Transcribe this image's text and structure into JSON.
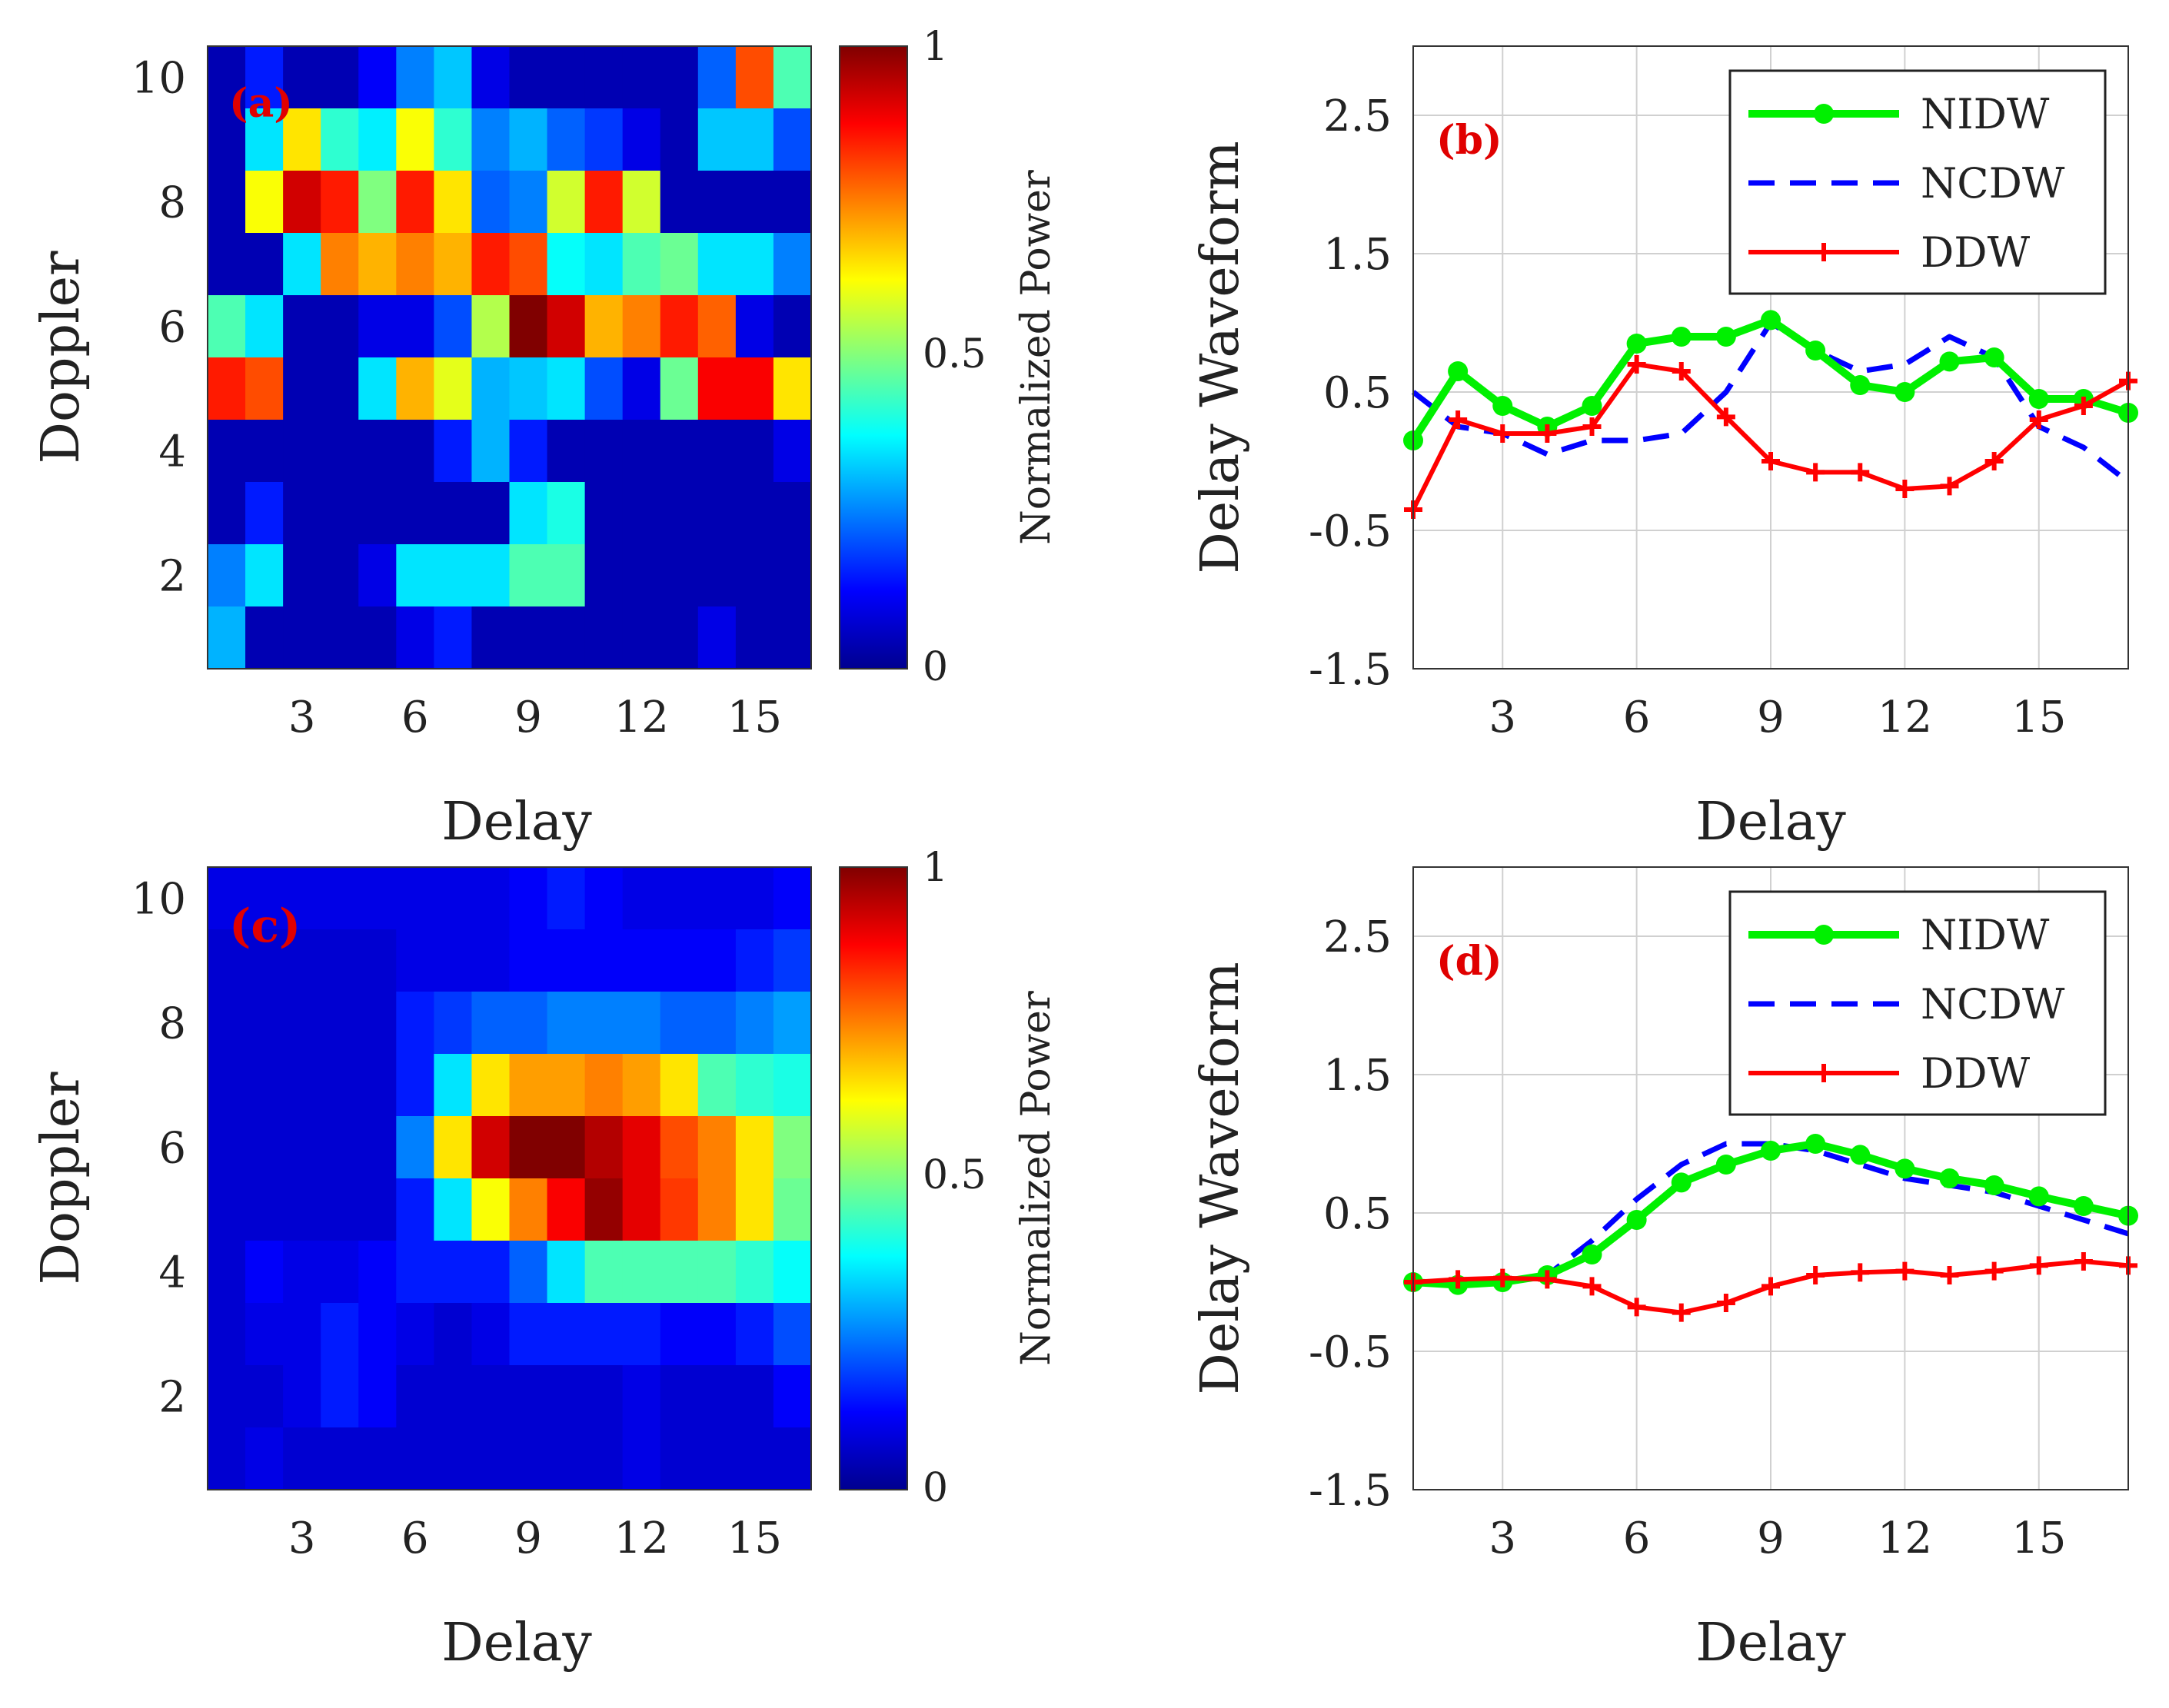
{
  "chart_data": [
    {
      "type": "heatmap",
      "panel_label": "(a)",
      "xlabel": "Delay",
      "ylabel": "Doppler",
      "xticks": [
        "3",
        "6",
        "9",
        "12",
        "15"
      ],
      "yticks": [
        "2",
        "4",
        "6",
        "8",
        "10"
      ],
      "xlim": [
        0.5,
        16.5
      ],
      "ylim": [
        0.5,
        10.5
      ],
      "colorbar": {
        "label": "Normalized Power",
        "ticks": [
          "0",
          "0.5",
          "1"
        ],
        "range": [
          0,
          1
        ]
      },
      "z_rows_top_to_bottom": [
        [
          0.05,
          0.15,
          0.05,
          0.05,
          0.12,
          0.25,
          0.32,
          0.1,
          0.05,
          0.05,
          0.05,
          0.05,
          0.05,
          0.22,
          0.8,
          0.45
        ],
        [
          0.05,
          0.35,
          0.65,
          0.42,
          0.36,
          0.62,
          0.42,
          0.25,
          0.3,
          0.22,
          0.18,
          0.1,
          0.05,
          0.32,
          0.32,
          0.2
        ],
        [
          0.05,
          0.62,
          0.92,
          0.85,
          0.5,
          0.85,
          0.65,
          0.22,
          0.25,
          0.58,
          0.85,
          0.58,
          0.05,
          0.05,
          0.05,
          0.05
        ],
        [
          0.05,
          0.05,
          0.35,
          0.75,
          0.7,
          0.75,
          0.7,
          0.85,
          0.8,
          0.38,
          0.35,
          0.45,
          0.48,
          0.35,
          0.35,
          0.25
        ],
        [
          0.45,
          0.35,
          0.05,
          0.05,
          0.1,
          0.1,
          0.2,
          0.55,
          1.0,
          0.92,
          0.7,
          0.75,
          0.85,
          0.78,
          0.1,
          0.05
        ],
        [
          0.85,
          0.8,
          0.05,
          0.05,
          0.35,
          0.7,
          0.6,
          0.3,
          0.32,
          0.35,
          0.2,
          0.1,
          0.48,
          0.88,
          0.88,
          0.65
        ],
        [
          0.05,
          0.05,
          0.05,
          0.05,
          0.05,
          0.05,
          0.15,
          0.3,
          0.15,
          0.05,
          0.05,
          0.05,
          0.05,
          0.05,
          0.05,
          0.1
        ],
        [
          0.05,
          0.15,
          0.05,
          0.05,
          0.05,
          0.05,
          0.05,
          0.05,
          0.35,
          0.4,
          0.05,
          0.05,
          0.05,
          0.05,
          0.05,
          0.05
        ],
        [
          0.25,
          0.35,
          0.05,
          0.05,
          0.1,
          0.35,
          0.35,
          0.35,
          0.45,
          0.45,
          0.05,
          0.05,
          0.05,
          0.05,
          0.05,
          0.05
        ],
        [
          0.3,
          0.05,
          0.05,
          0.05,
          0.05,
          0.1,
          0.15,
          0.05,
          0.05,
          0.05,
          0.05,
          0.05,
          0.05,
          0.1,
          0.05,
          0.05
        ]
      ]
    },
    {
      "type": "line",
      "panel_label": "(b)",
      "xlabel": "Delay",
      "ylabel": "Delay Waveform",
      "xticks": [
        "3",
        "6",
        "9",
        "12",
        "15"
      ],
      "yticks": [
        "2.5",
        "1.5",
        "0.5",
        "-0.5",
        "-1.5"
      ],
      "xlim": [
        1,
        17
      ],
      "ylim": [
        -1.5,
        3.0
      ],
      "grid": true,
      "legend_position": "top-right",
      "x": [
        1,
        2,
        3,
        4,
        5,
        6,
        7,
        8,
        9,
        10,
        11,
        12,
        13,
        14,
        15,
        16,
        17
      ],
      "series": [
        {
          "name": "NIDW",
          "color": "#00f000",
          "style": "solid-circle",
          "values": [
            0.15,
            0.65,
            0.4,
            0.25,
            0.4,
            0.85,
            0.9,
            0.9,
            1.02,
            0.8,
            0.55,
            0.5,
            0.72,
            0.75,
            0.45,
            0.45,
            0.35
          ]
        },
        {
          "name": "NCDW",
          "color": "#0000ff",
          "style": "dashed",
          "values": [
            0.5,
            0.25,
            0.2,
            0.05,
            0.15,
            0.15,
            0.2,
            0.5,
            1.0,
            0.8,
            0.65,
            0.7,
            0.9,
            0.75,
            0.25,
            0.1,
            -0.15
          ]
        },
        {
          "name": "DDW",
          "color": "#ff0000",
          "style": "solid-plus",
          "values": [
            -0.35,
            0.3,
            0.2,
            0.2,
            0.25,
            0.7,
            0.65,
            0.32,
            0.0,
            -0.08,
            -0.08,
            -0.2,
            -0.18,
            0.0,
            0.3,
            0.4,
            0.58
          ]
        }
      ]
    },
    {
      "type": "heatmap",
      "panel_label": "(c)",
      "xlabel": "Delay",
      "ylabel": "Doppler",
      "xticks": [
        "3",
        "6",
        "9",
        "12",
        "15"
      ],
      "yticks": [
        "2",
        "4",
        "6",
        "8",
        "10"
      ],
      "xlim": [
        0.5,
        16.5
      ],
      "ylim": [
        0.5,
        10.5
      ],
      "colorbar": {
        "label": "Normalized Power",
        "ticks": [
          "0",
          "0.5",
          "1"
        ],
        "range": [
          0,
          1
        ]
      },
      "z_rows_top_to_bottom": [
        [
          0.1,
          0.1,
          0.1,
          0.1,
          0.1,
          0.1,
          0.1,
          0.1,
          0.12,
          0.15,
          0.12,
          0.1,
          0.1,
          0.1,
          0.1,
          0.12
        ],
        [
          0.08,
          0.08,
          0.08,
          0.08,
          0.08,
          0.1,
          0.1,
          0.1,
          0.12,
          0.12,
          0.12,
          0.12,
          0.12,
          0.12,
          0.15,
          0.18
        ],
        [
          0.08,
          0.08,
          0.08,
          0.08,
          0.08,
          0.15,
          0.18,
          0.22,
          0.22,
          0.25,
          0.25,
          0.25,
          0.22,
          0.22,
          0.25,
          0.28
        ],
        [
          0.08,
          0.08,
          0.08,
          0.08,
          0.08,
          0.15,
          0.35,
          0.65,
          0.72,
          0.72,
          0.75,
          0.72,
          0.65,
          0.45,
          0.42,
          0.4
        ],
        [
          0.08,
          0.08,
          0.08,
          0.08,
          0.08,
          0.25,
          0.65,
          0.92,
          1.0,
          1.0,
          0.95,
          0.9,
          0.8,
          0.75,
          0.65,
          0.5
        ],
        [
          0.08,
          0.08,
          0.08,
          0.08,
          0.08,
          0.15,
          0.35,
          0.62,
          0.75,
          0.88,
          0.98,
          0.9,
          0.82,
          0.75,
          0.65,
          0.48
        ],
        [
          0.08,
          0.12,
          0.1,
          0.1,
          0.12,
          0.15,
          0.15,
          0.15,
          0.22,
          0.35,
          0.45,
          0.45,
          0.45,
          0.45,
          0.42,
          0.38
        ],
        [
          0.08,
          0.1,
          0.1,
          0.15,
          0.12,
          0.1,
          0.08,
          0.1,
          0.15,
          0.15,
          0.15,
          0.15,
          0.12,
          0.12,
          0.15,
          0.2
        ],
        [
          0.08,
          0.08,
          0.1,
          0.15,
          0.12,
          0.08,
          0.08,
          0.08,
          0.08,
          0.08,
          0.08,
          0.1,
          0.08,
          0.08,
          0.08,
          0.12
        ],
        [
          0.08,
          0.1,
          0.08,
          0.08,
          0.08,
          0.08,
          0.08,
          0.08,
          0.08,
          0.08,
          0.08,
          0.1,
          0.08,
          0.08,
          0.08,
          0.08
        ]
      ]
    },
    {
      "type": "line",
      "panel_label": "(d)",
      "xlabel": "Delay",
      "ylabel": "Delay Waveform",
      "xticks": [
        "3",
        "6",
        "9",
        "12",
        "15"
      ],
      "yticks": [
        "2.5",
        "1.5",
        "0.5",
        "-0.5",
        "-1.5"
      ],
      "xlim": [
        1,
        17
      ],
      "ylim": [
        -1.5,
        3.0
      ],
      "grid": true,
      "legend_position": "top-right",
      "x": [
        1,
        2,
        3,
        4,
        5,
        6,
        7,
        8,
        9,
        10,
        11,
        12,
        13,
        14,
        15,
        16,
        17
      ],
      "series": [
        {
          "name": "NIDW",
          "color": "#00f000",
          "style": "solid-circle",
          "values": [
            0.0,
            -0.02,
            0.0,
            0.05,
            0.2,
            0.45,
            0.72,
            0.85,
            0.95,
            1.0,
            0.92,
            0.82,
            0.75,
            0.7,
            0.62,
            0.55,
            0.48
          ]
        },
        {
          "name": "NCDW",
          "color": "#0000ff",
          "style": "dashed",
          "values": [
            0.0,
            0.0,
            0.0,
            0.05,
            0.3,
            0.6,
            0.85,
            1.0,
            1.0,
            0.95,
            0.85,
            0.75,
            0.7,
            0.65,
            0.55,
            0.45,
            0.35
          ]
        },
        {
          "name": "DDW",
          "color": "#ff0000",
          "style": "solid-plus",
          "values": [
            0.0,
            0.02,
            0.03,
            0.02,
            -0.03,
            -0.18,
            -0.22,
            -0.15,
            -0.03,
            0.05,
            0.07,
            0.08,
            0.05,
            0.08,
            0.12,
            0.15,
            0.12
          ]
        }
      ]
    }
  ]
}
